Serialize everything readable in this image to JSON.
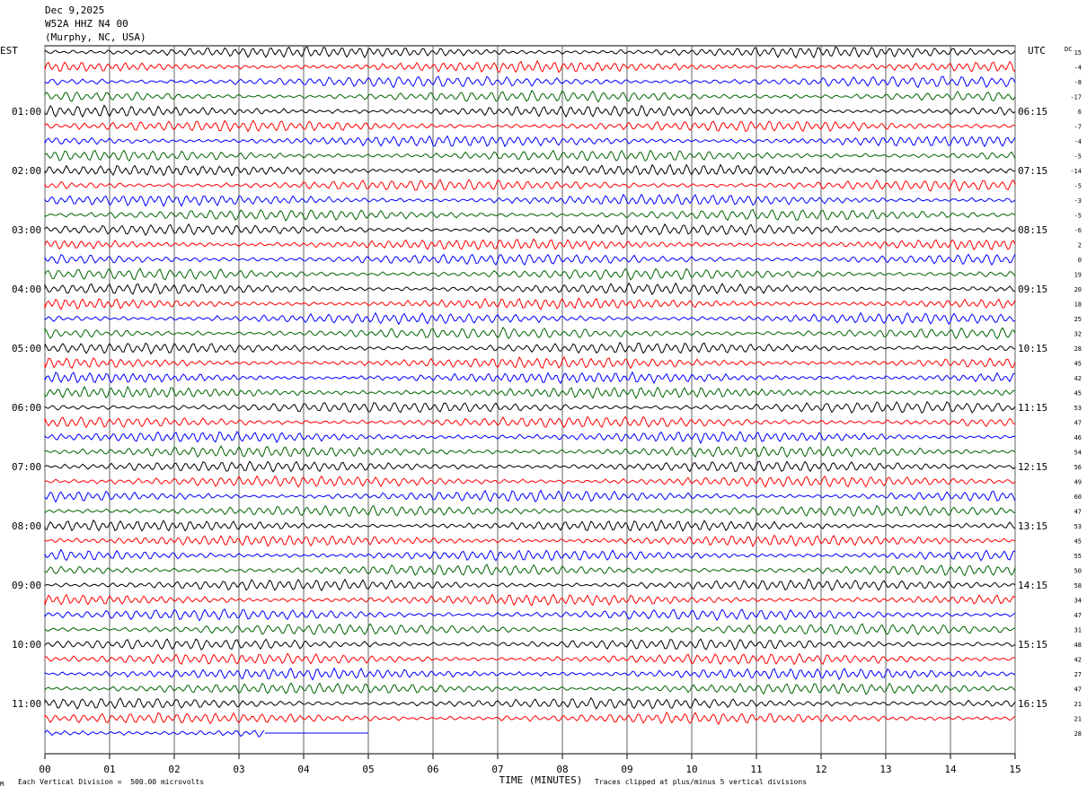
{
  "header": {
    "date": "Dec 9,2025",
    "station": "W52A HHZ N4 00",
    "location": "(Murphy, NC, USA)"
  },
  "left_tz": "EST",
  "right_tz": "UTC",
  "dc_label": "DC",
  "footer": {
    "scale": "Each Vertical Division =  500.00 microvolts",
    "xlabel": "TIME (MINUTES)",
    "clip_note": "Traces clipped at plus/minus 5 vertical divisions",
    "corner_mark": "M"
  },
  "chart_data": {
    "type": "line",
    "trace_colors": [
      "#000000",
      "#ff0000",
      "#0000ff",
      "#006400"
    ],
    "x_ticks": [
      "00",
      "01",
      "02",
      "03",
      "04",
      "05",
      "06",
      "07",
      "08",
      "09",
      "10",
      "11",
      "12",
      "13",
      "14",
      "15"
    ],
    "left_hour_labels": [
      "01:00",
      "02:00",
      "03:00",
      "04:00",
      "05:00",
      "06:00",
      "07:00",
      "08:00",
      "09:00",
      "10:00",
      "11:00"
    ],
    "right_hour_labels": [
      "06:15",
      "07:15",
      "08:15",
      "09:15",
      "10:15",
      "11:15",
      "12:15",
      "13:15",
      "14:15",
      "15:15",
      "16:15"
    ],
    "dc_offsets": [
      "15",
      "-4",
      "-8",
      "-17",
      "6",
      "-7",
      "-4",
      "-5",
      "-14",
      "-5",
      "-3",
      "-5",
      "-6",
      "2",
      "0",
      "19",
      "20",
      "18",
      "25",
      "32",
      "28",
      "45",
      "42",
      "45",
      "53",
      "47",
      "46",
      "54",
      "56",
      "49",
      "60",
      "47",
      "53",
      "45",
      "55",
      "50",
      "58",
      "34",
      "47",
      "31",
      "48",
      "42",
      "27",
      "47",
      "21",
      "21",
      "28"
    ],
    "rows": 47,
    "last_row_end_minute": 3.4,
    "grid": true
  }
}
